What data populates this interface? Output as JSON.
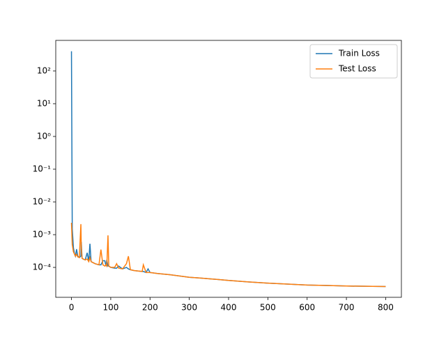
{
  "chart_data": {
    "type": "line",
    "log_y": true,
    "legend": "upper right",
    "x": [
      0,
      2,
      5,
      8,
      10,
      13,
      16,
      20,
      24,
      25,
      27,
      30,
      35,
      40,
      44,
      47,
      50,
      55,
      60,
      70,
      75,
      80,
      85,
      88,
      90,
      93,
      95,
      100,
      110,
      115,
      120,
      130,
      140,
      145,
      150,
      160,
      180,
      183,
      190,
      195,
      200,
      220,
      250,
      300,
      320,
      340,
      350,
      370,
      400,
      450,
      500,
      550,
      600,
      650,
      700,
      750,
      800
    ],
    "series": [
      {
        "name": "Train Loss",
        "color": "#1f77b4",
        "values": [
          400,
          0.0015,
          0.0004,
          0.00025,
          0.00022,
          0.00036,
          0.00022,
          0.0002,
          0.00022,
          0.0006,
          0.00019,
          0.00018,
          0.00017,
          0.00028,
          0.00015,
          0.00053,
          0.00015,
          0.00014,
          0.00013,
          0.00012,
          0.00012,
          0.00016,
          0.00016,
          0.00011,
          0.00017,
          0.00011,
          0.00011,
          0.0001,
          9.5e-05,
          9.5e-05,
          0.00011,
          9e-05,
          0.0001,
          9e-05,
          8.5e-05,
          8e-05,
          7.5e-05,
          7.5e-05,
          7e-05,
          9e-05,
          7e-05,
          6.5e-05,
          6e-05,
          5e-05,
          4.8e-05,
          4.6e-05,
          4.5e-05,
          4.3e-05,
          4e-05,
          3.6e-05,
          3.3e-05,
          3.1e-05,
          2.9e-05,
          2.8e-05,
          2.7e-05,
          2.65e-05,
          2.6e-05
        ]
      },
      {
        "name": "Test Loss",
        "color": "#ff7f0e",
        "values": [
          0.0023,
          0.0005,
          0.0003,
          0.00025,
          0.00022,
          0.00025,
          0.00021,
          0.0002,
          0.0021,
          0.0004,
          0.00019,
          0.00018,
          0.00017,
          0.00018,
          0.00015,
          0.0002,
          0.00015,
          0.00014,
          0.00013,
          0.00012,
          0.00035,
          0.00012,
          0.00011,
          0.00012,
          0.00011,
          0.00095,
          0.00011,
          0.0001,
          0.0001,
          0.00013,
          9.5e-05,
          9e-05,
          0.00013,
          0.00022,
          8.5e-05,
          8e-05,
          7.5e-05,
          0.00012,
          7e-05,
          7e-05,
          7e-05,
          6.5e-05,
          6e-05,
          5e-05,
          4.8e-05,
          4.6e-05,
          4.5e-05,
          4.3e-05,
          4e-05,
          3.6e-05,
          3.3e-05,
          3.1e-05,
          2.9e-05,
          2.8e-05,
          2.7e-05,
          2.65e-05,
          2.6e-05
        ]
      }
    ],
    "xlim": [
      -40,
      840
    ],
    "xticks": [
      0,
      100,
      200,
      300,
      400,
      500,
      600,
      700,
      800
    ],
    "ylim": [
      1.22e-05,
      860
    ],
    "yticks": [
      {
        "value": 0.0001,
        "label": "10⁻⁴"
      },
      {
        "value": 0.001,
        "label": "10⁻³"
      },
      {
        "value": 0.01,
        "label": "10⁻²"
      },
      {
        "value": 0.1,
        "label": "10⁻¹"
      },
      {
        "value": 1,
        "label": "10⁰"
      },
      {
        "value": 10,
        "label": "10¹"
      },
      {
        "value": 100,
        "label": "10²"
      }
    ]
  }
}
